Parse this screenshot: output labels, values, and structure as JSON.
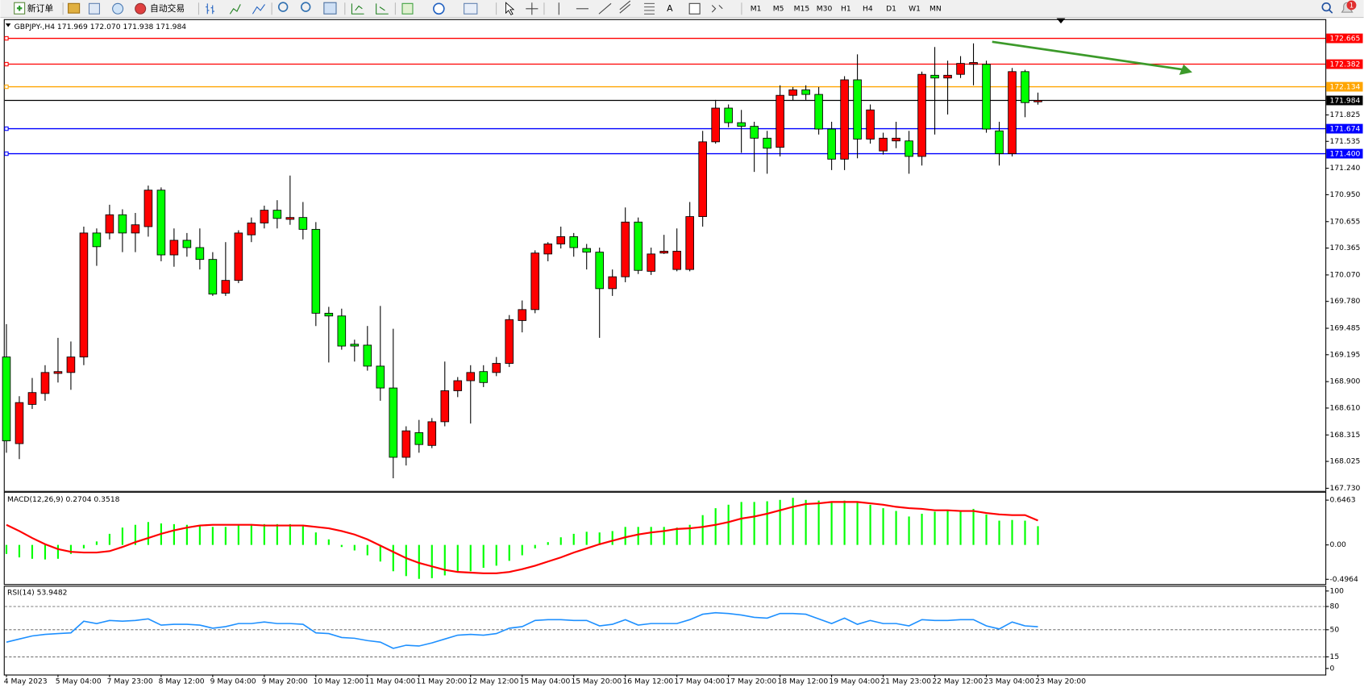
{
  "toolbar": {
    "new_order": "新订单",
    "auto_trading": "自动交易",
    "timeframes": [
      "M1",
      "M5",
      "M15",
      "M30",
      "H1",
      "H4",
      "D1",
      "W1",
      "MN"
    ],
    "notification": 1
  },
  "chart_data": [
    {
      "type": "candlestick",
      "title": "GBPJPY-,H4  171.969 172.070 171.938 171.984",
      "up_color": "#ff0000",
      "down_color": "#00ff00",
      "categories": [
        "4 May 2023",
        null,
        null,
        null,
        "5 May 04:00",
        null,
        null,
        null,
        "7 May 23:00",
        null,
        null,
        null,
        "8 May 12:00",
        null,
        null,
        null,
        "9 May 04:00",
        null,
        null,
        null,
        "9 May 20:00",
        null,
        null,
        null,
        "10 May 12:00",
        null,
        null,
        null,
        "11 May 04:00",
        null,
        null,
        null,
        "11 May 20:00",
        null,
        null,
        null,
        "12 May 12:00",
        null,
        null,
        null,
        "15 May 04:00",
        null,
        null,
        null,
        "15 May 20:00",
        null,
        null,
        null,
        "16 May 12:00",
        null,
        null,
        null,
        "17 May 04:00",
        null,
        null,
        null,
        "17 May 20:00",
        null,
        null,
        null,
        "18 May 12:00",
        null,
        null,
        null,
        "19 May 04:00",
        null,
        null,
        null,
        "21 May 23:00",
        null,
        null,
        null,
        "22 May 12:00",
        null,
        null,
        null,
        "23 May 04:00",
        null,
        null,
        null,
        "23 May 20:00"
      ],
      "open": [
        169.17,
        168.22,
        168.65,
        168.77,
        168.99,
        169.0,
        169.17,
        170.53,
        170.53,
        170.73,
        170.53,
        170.6,
        171.0,
        170.29,
        170.45,
        170.37,
        170.24,
        169.87,
        170.01,
        170.51,
        170.64,
        170.78,
        170.68,
        170.7,
        170.57,
        169.65,
        169.62,
        169.31,
        169.3,
        169.07,
        168.83,
        168.07,
        168.34,
        168.2,
        168.46,
        168.8,
        168.91,
        169.01,
        169.0,
        169.1,
        169.57,
        169.69,
        170.3,
        170.41,
        170.49,
        170.36,
        170.32,
        169.92,
        170.05,
        170.65,
        170.11,
        170.31,
        170.13,
        170.13,
        170.71,
        171.53,
        171.9,
        171.74,
        171.7,
        171.57,
        171.47,
        172.04,
        172.1,
        172.05,
        171.67,
        171.34,
        172.21,
        171.56,
        171.43,
        171.54,
        171.54,
        171.37,
        172.26,
        172.23,
        172.27,
        172.38,
        172.38,
        171.65,
        171.4,
        172.3,
        171.969
      ],
      "high": [
        169.53,
        168.74,
        168.94,
        169.08,
        169.38,
        169.34,
        170.6,
        170.58,
        170.84,
        170.79,
        170.75,
        171.05,
        171.03,
        170.58,
        170.53,
        170.58,
        170.32,
        170.43,
        170.56,
        170.7,
        170.83,
        170.89,
        171.16,
        170.87,
        170.65,
        169.72,
        169.7,
        169.36,
        169.51,
        169.73,
        169.48,
        168.41,
        168.48,
        168.5,
        169.12,
        168.95,
        169.08,
        169.08,
        169.17,
        169.63,
        169.79,
        170.34,
        170.43,
        170.6,
        170.53,
        170.41,
        170.37,
        170.13,
        170.81,
        170.7,
        170.37,
        170.51,
        170.58,
        170.87,
        171.65,
        171.99,
        171.94,
        171.88,
        171.75,
        171.65,
        172.15,
        172.13,
        172.15,
        172.13,
        171.75,
        172.25,
        172.49,
        171.94,
        171.63,
        171.75,
        171.65,
        172.3,
        172.57,
        172.42,
        172.47,
        172.61,
        172.42,
        171.75,
        172.34,
        172.32,
        172.07
      ],
      "low": [
        168.12,
        168.05,
        168.6,
        168.69,
        168.89,
        168.81,
        169.08,
        170.17,
        170.46,
        170.32,
        170.32,
        170.49,
        170.22,
        170.16,
        170.27,
        170.13,
        169.84,
        169.84,
        169.98,
        170.43,
        170.58,
        170.58,
        170.62,
        170.46,
        169.51,
        169.11,
        169.25,
        169.12,
        169.02,
        168.69,
        167.84,
        167.98,
        168.12,
        168.17,
        168.41,
        168.73,
        168.44,
        168.84,
        168.96,
        169.06,
        169.44,
        169.65,
        170.22,
        170.36,
        170.27,
        170.13,
        169.38,
        169.84,
        169.99,
        170.08,
        170.07,
        170.3,
        170.11,
        170.11,
        170.6,
        171.51,
        171.69,
        171.41,
        171.2,
        171.18,
        171.37,
        171.98,
        171.99,
        171.61,
        171.22,
        171.22,
        171.35,
        171.51,
        171.39,
        171.46,
        171.18,
        171.27,
        171.61,
        171.83,
        172.23,
        172.15,
        171.63,
        171.27,
        171.37,
        171.8,
        171.938
      ],
      "close": [
        168.25,
        168.67,
        168.78,
        169.0,
        169.01,
        169.17,
        170.53,
        170.38,
        170.73,
        170.53,
        170.62,
        171.0,
        170.29,
        170.45,
        170.37,
        170.24,
        169.86,
        170.01,
        170.53,
        170.64,
        170.78,
        170.69,
        170.7,
        170.57,
        169.65,
        169.62,
        169.29,
        169.29,
        169.07,
        168.83,
        168.07,
        168.36,
        168.21,
        168.46,
        168.8,
        168.91,
        169.0,
        168.89,
        169.1,
        169.58,
        169.69,
        170.31,
        170.41,
        170.49,
        170.37,
        170.32,
        169.92,
        170.05,
        170.65,
        170.12,
        170.3,
        170.33,
        170.33,
        170.71,
        171.53,
        171.9,
        171.74,
        171.7,
        171.57,
        171.46,
        172.04,
        172.1,
        172.05,
        171.67,
        171.34,
        172.21,
        171.56,
        171.88,
        171.57,
        171.57,
        171.37,
        172.27,
        172.23,
        172.26,
        172.39,
        172.4,
        171.67,
        171.4,
        172.3,
        171.96,
        171.984
      ],
      "ylim": [
        167.701,
        172.866
      ],
      "yticks": [
        {
          "value": 171.825,
          "label": "171.825"
        },
        {
          "value": 171.535,
          "label": "171.535"
        },
        {
          "value": 171.24,
          "label": "171.240"
        },
        {
          "value": 170.95,
          "label": "170.950"
        },
        {
          "value": 170.655,
          "label": "170.655"
        },
        {
          "value": 170.365,
          "label": "170.365"
        },
        {
          "value": 170.07,
          "label": "170.070"
        },
        {
          "value": 169.78,
          "label": "169.780"
        },
        {
          "value": 169.485,
          "label": "169.485"
        },
        {
          "value": 169.195,
          "label": "169.195"
        },
        {
          "value": 168.9,
          "label": "168.900"
        },
        {
          "value": 168.61,
          "label": "168.610"
        },
        {
          "value": 168.315,
          "label": "168.315"
        },
        {
          "value": 168.025,
          "label": "168.025"
        },
        {
          "value": 167.73,
          "label": "167.730"
        }
      ],
      "levels": [
        {
          "value": 172.665,
          "label": "172.665",
          "color": "#ff0000"
        },
        {
          "value": 172.382,
          "label": "172.382",
          "color": "#ff0000"
        },
        {
          "value": 172.134,
          "label": "172.134",
          "color": "#ffa500"
        },
        {
          "value": 171.674,
          "label": "171.674",
          "color": "#0000ff"
        },
        {
          "value": 171.4,
          "label": "171.400",
          "color": "#0000ff"
        }
      ],
      "current_price": {
        "value": 171.984,
        "label": "171.984",
        "color": "#000000"
      }
    },
    {
      "type": "macd",
      "title": "MACD(12,26,9) 0.2704 0.3518",
      "series": [
        {
          "type": "bar",
          "color": "#00ff00",
          "values": [
            -0.13,
            -0.18,
            -0.2,
            -0.21,
            -0.2,
            -0.13,
            -0.05,
            0.05,
            0.16,
            0.25,
            0.29,
            0.33,
            0.31,
            0.3,
            0.29,
            0.28,
            0.26,
            0.26,
            0.29,
            0.3,
            0.3,
            0.3,
            0.3,
            0.29,
            0.18,
            0.08,
            -0.03,
            -0.08,
            -0.15,
            -0.24,
            -0.38,
            -0.45,
            -0.49,
            -0.48,
            -0.44,
            -0.4,
            -0.38,
            -0.33,
            -0.3,
            -0.23,
            -0.15,
            -0.05,
            0.04,
            0.11,
            0.16,
            0.19,
            0.18,
            0.2,
            0.26,
            0.26,
            0.26,
            0.26,
            0.25,
            0.29,
            0.43,
            0.53,
            0.58,
            0.62,
            0.62,
            0.63,
            0.65,
            0.68,
            0.65,
            0.64,
            0.63,
            0.64,
            0.63,
            0.58,
            0.53,
            0.49,
            0.41,
            0.45,
            0.48,
            0.49,
            0.49,
            0.52,
            0.44,
            0.35,
            0.36,
            0.35,
            0.2704
          ]
        },
        {
          "type": "line",
          "color": "#ff0000",
          "values": [
            0.29,
            0.2,
            0.1,
            0.01,
            -0.06,
            -0.1,
            -0.11,
            -0.11,
            -0.09,
            -0.03,
            0.04,
            0.1,
            0.16,
            0.21,
            0.25,
            0.28,
            0.29,
            0.29,
            0.29,
            0.29,
            0.28,
            0.28,
            0.28,
            0.28,
            0.26,
            0.24,
            0.2,
            0.15,
            0.08,
            -0.01,
            -0.1,
            -0.19,
            -0.26,
            -0.31,
            -0.36,
            -0.39,
            -0.4,
            -0.41,
            -0.41,
            -0.39,
            -0.35,
            -0.3,
            -0.24,
            -0.18,
            -0.11,
            -0.05,
            0.01,
            0.06,
            0.11,
            0.15,
            0.18,
            0.2,
            0.23,
            0.24,
            0.26,
            0.29,
            0.33,
            0.38,
            0.41,
            0.45,
            0.5,
            0.55,
            0.59,
            0.6,
            0.62,
            0.62,
            0.62,
            0.6,
            0.58,
            0.55,
            0.53,
            0.52,
            0.5,
            0.5,
            0.49,
            0.49,
            0.46,
            0.44,
            0.43,
            0.43,
            0.3518
          ]
        }
      ],
      "ylim": [
        -0.565,
        0.754
      ],
      "yticks": [
        0.6463,
        {
          "value": 0,
          "label": "0.00"
        },
        -0.4964
      ]
    },
    {
      "type": "line",
      "title": "RSI(14) 53.9482",
      "color": "#1e90ff",
      "values": [
        34,
        38,
        42,
        44,
        45,
        46,
        61,
        58,
        62,
        61,
        62,
        64,
        56,
        57,
        57,
        56,
        52,
        54,
        58,
        58,
        60,
        58,
        58,
        57,
        46,
        45,
        40,
        39,
        36,
        34,
        26,
        30,
        29,
        33,
        38,
        43,
        44,
        43,
        45,
        52,
        54,
        62,
        63,
        63,
        62,
        62,
        55,
        57,
        63,
        56,
        58,
        58,
        58,
        63,
        70,
        72,
        71,
        69,
        66,
        65,
        71,
        71,
        70,
        64,
        58,
        65,
        57,
        62,
        58,
        58,
        55,
        63,
        62,
        62,
        63,
        63,
        55,
        51,
        60,
        55,
        53.9482
      ],
      "ylim": [
        -7.9,
        105.6
      ],
      "yticks": [
        100,
        80,
        50,
        15,
        0
      ],
      "levels": [
        80,
        50,
        15
      ]
    }
  ]
}
